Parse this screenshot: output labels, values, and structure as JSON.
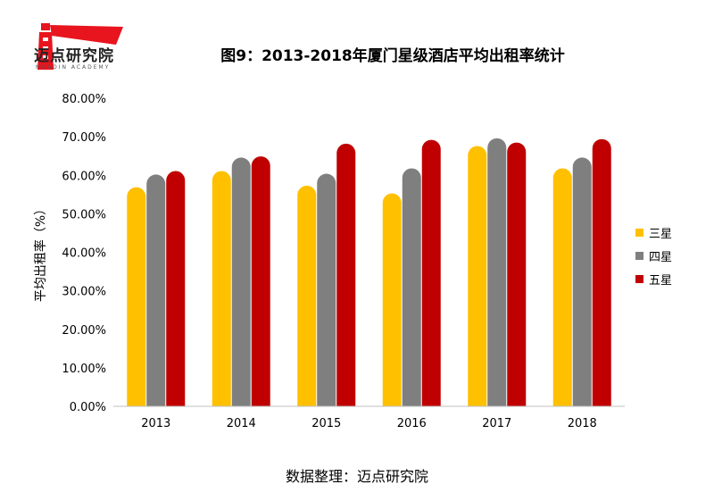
{
  "logo": {
    "name": "迈点研究院",
    "subtitle": "MEADIN ACADEMY"
  },
  "title": "图9：2013-2018年厦门星级酒店平均出租率统计",
  "source": "数据整理：迈点研究院",
  "colors": {
    "三星": "#FFC000",
    "四星": "#7F7F7F",
    "五星": "#C00000",
    "logo_red": "#E8141E"
  },
  "chart_data": {
    "type": "bar",
    "categories": [
      "2013",
      "2014",
      "2015",
      "2016",
      "2017",
      "2018"
    ],
    "series": [
      {
        "name": "三星",
        "values": [
          56.9,
          61.1,
          57.3,
          55.3,
          67.6,
          61.8
        ]
      },
      {
        "name": "四星",
        "values": [
          60.2,
          64.6,
          60.4,
          61.8,
          69.6,
          64.6
        ]
      },
      {
        "name": "五星",
        "values": [
          61.1,
          64.9,
          68.2,
          69.2,
          68.5,
          69.4
        ]
      }
    ],
    "ylabel": "平均出租率（%）",
    "xlabel": "",
    "ylim": [
      0,
      80
    ],
    "yticks": [
      "0.00%",
      "10.00%",
      "20.00%",
      "30.00%",
      "40.00%",
      "50.00%",
      "60.00%",
      "70.00%",
      "80.00%"
    ],
    "legend_position": "right",
    "grid": false
  }
}
